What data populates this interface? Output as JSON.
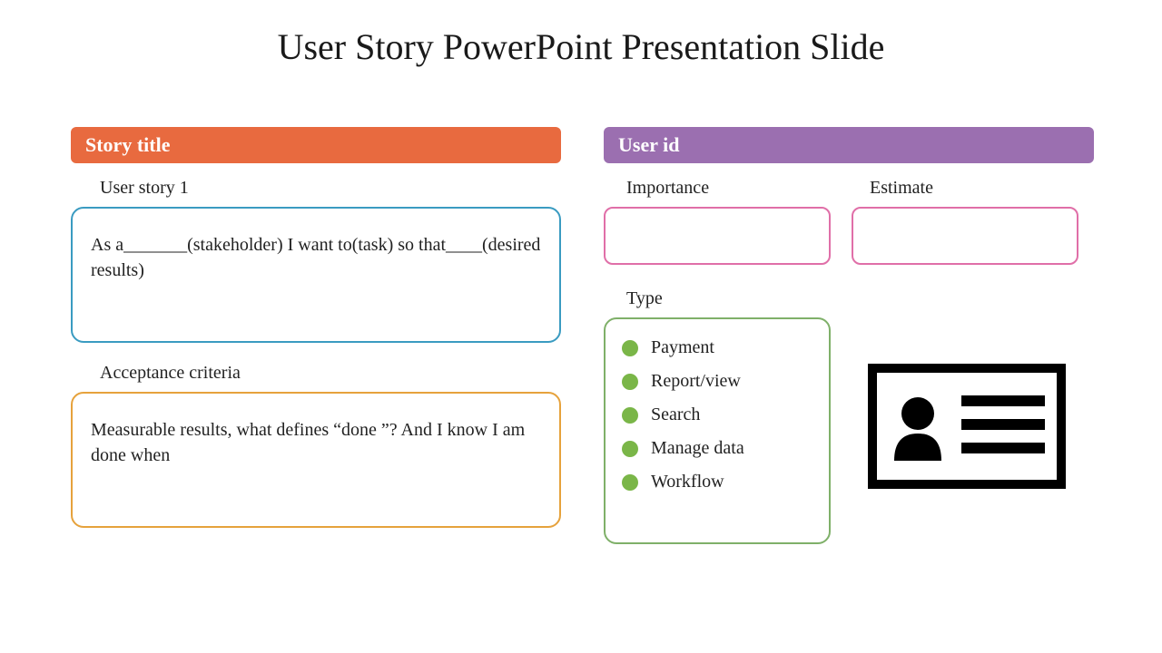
{
  "title": "User Story PowerPoint Presentation Slide",
  "left": {
    "header": {
      "text": "Story title",
      "bg": "#e86a3f"
    },
    "story_label": "User story 1",
    "story_box": {
      "text": "As a_______(stakeholder) I want to(task) so that____(desired results)",
      "border": "#3a9bc1"
    },
    "acceptance_label": "Acceptance criteria",
    "acceptance_box": {
      "text": "Measurable results, what defines “done ”? And I know I am done when",
      "border": "#e6a23c"
    }
  },
  "right": {
    "header": {
      "text": "User id",
      "bg": "#9b6fb0"
    },
    "importance": {
      "label": "Importance",
      "border": "#e06fa8"
    },
    "estimate": {
      "label": "Estimate",
      "border": "#e06fa8"
    },
    "type": {
      "label": "Type",
      "border": "#7fb069",
      "bullet_color": "#7ab648",
      "items": [
        "Payment",
        "Report/view",
        "Search",
        "Manage data",
        "Workflow"
      ]
    }
  },
  "colors": {
    "title": "#1a1a1a",
    "text": "#222222",
    "bg": "#ffffff"
  }
}
